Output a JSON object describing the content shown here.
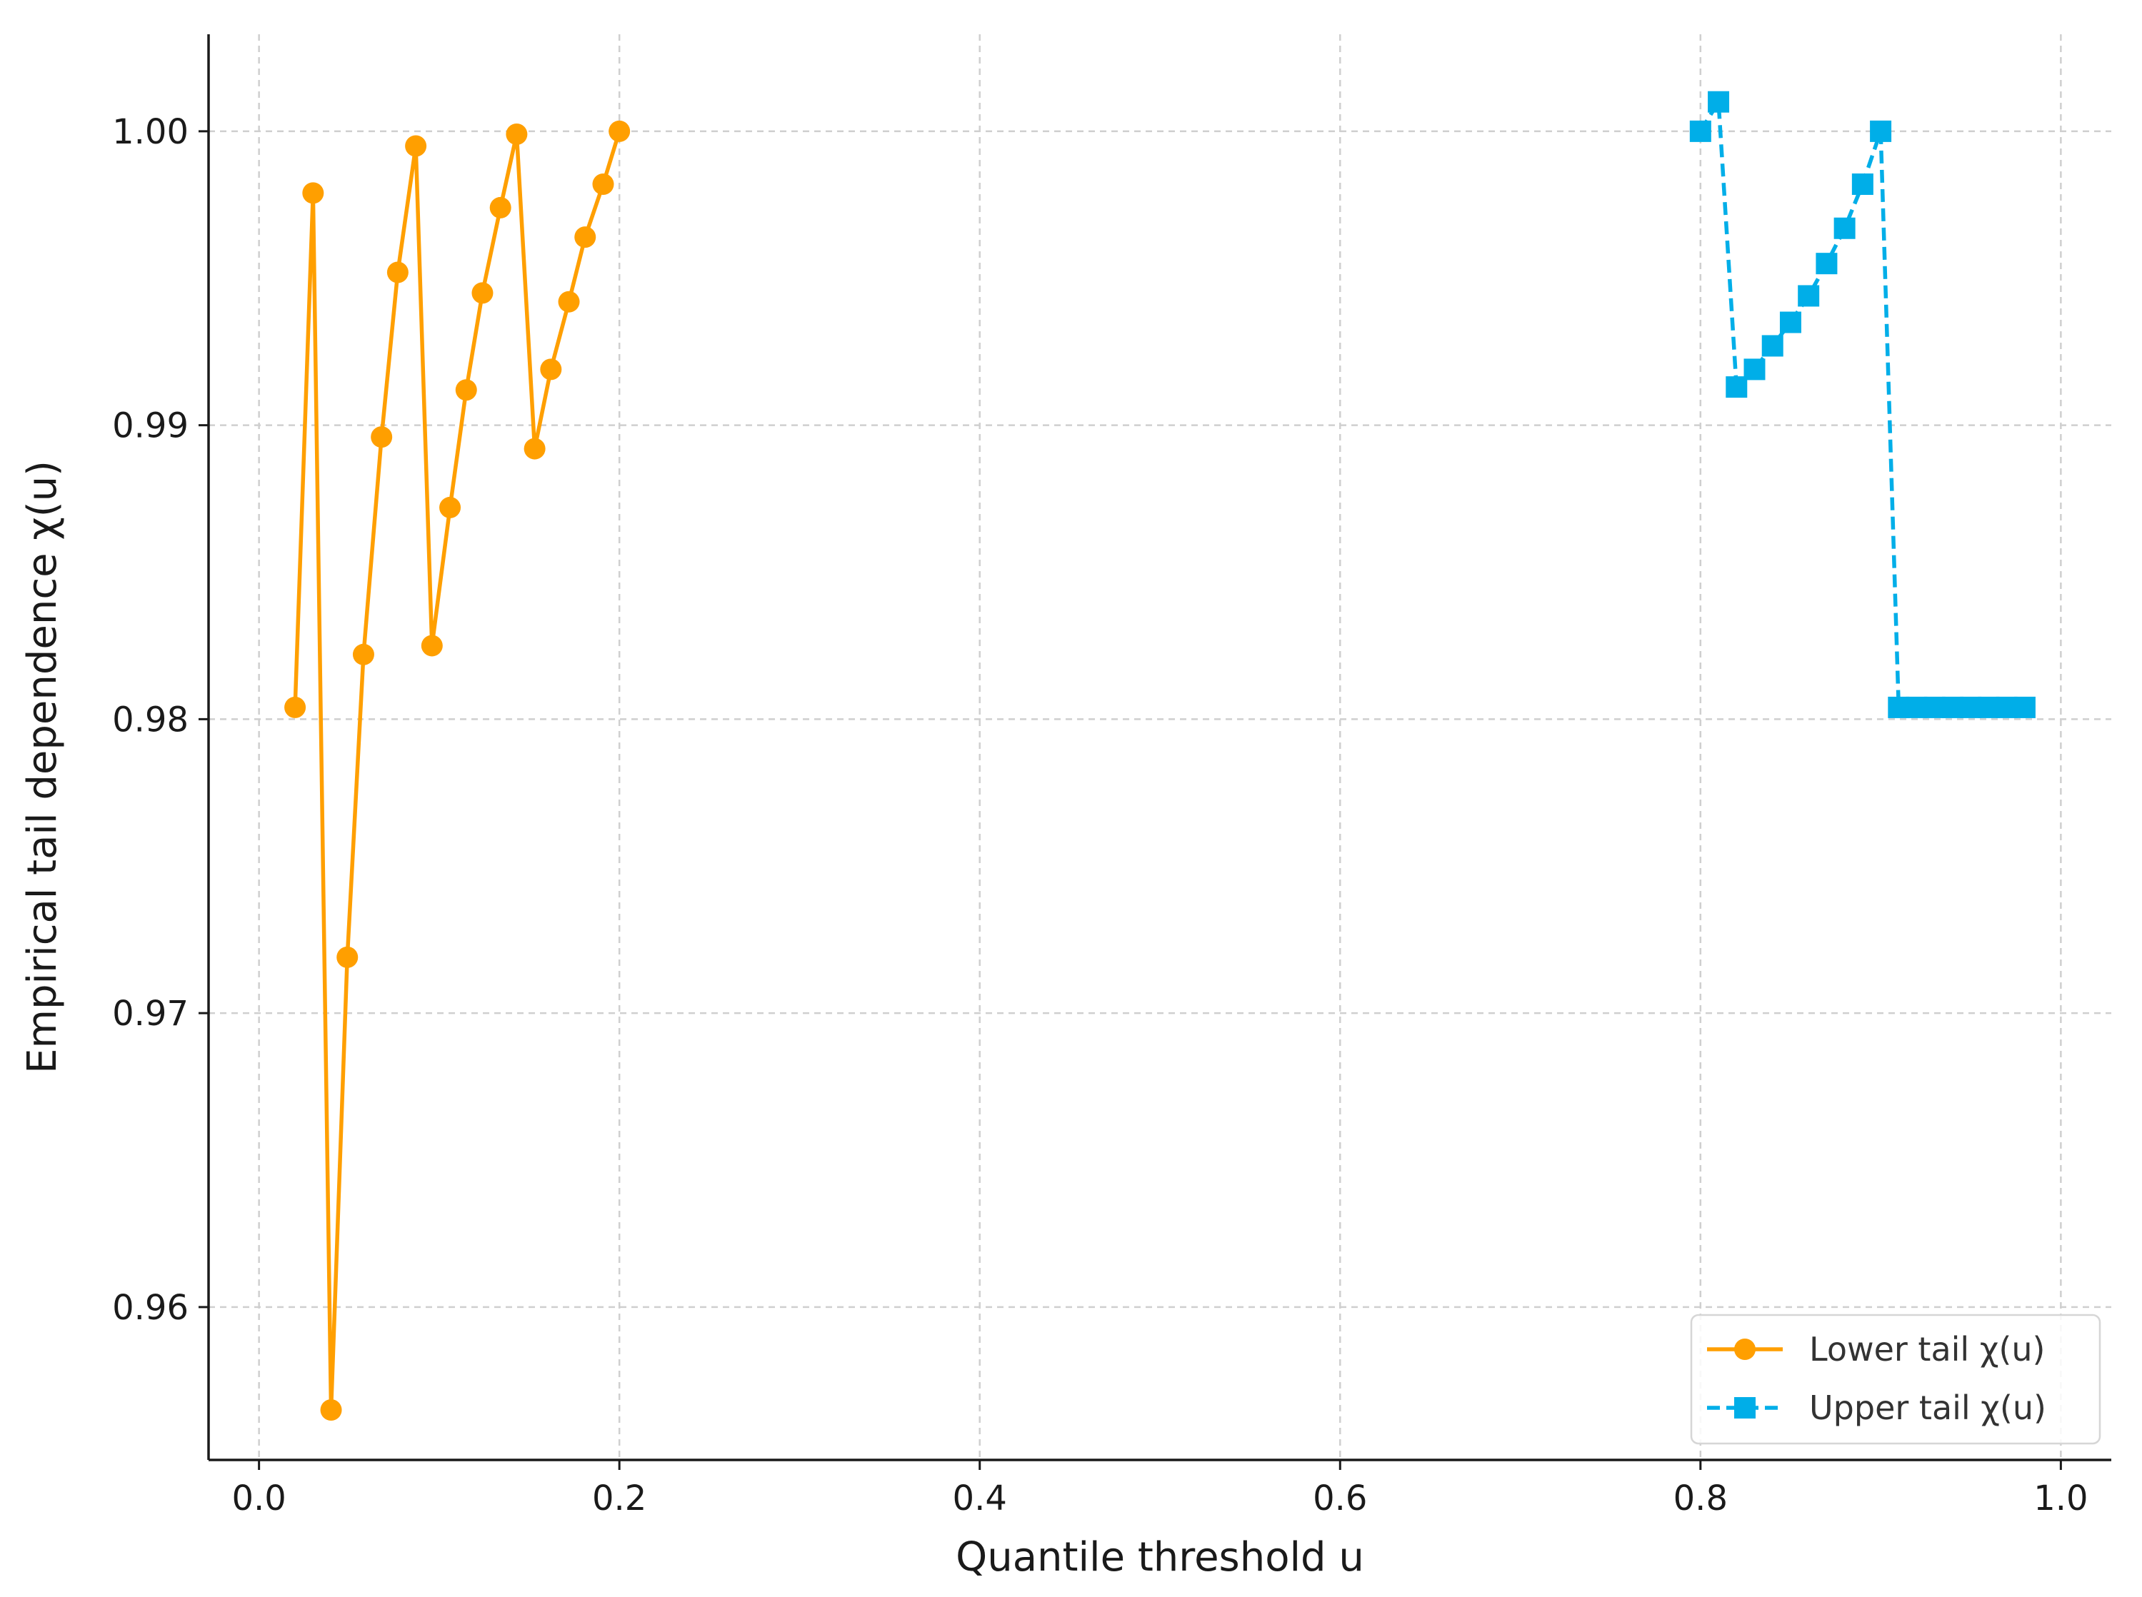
{
  "chart_data": {
    "type": "line",
    "title": "",
    "xlabel": "Quantile threshold u",
    "ylabel": "Empirical tail dependence χ(u)",
    "xlim": [
      -0.028,
      1.028
    ],
    "ylim": [
      0.9548,
      1.0033
    ],
    "x_ticks": [
      0.0,
      0.2,
      0.4,
      0.6,
      0.8,
      1.0
    ],
    "x_tick_labels": [
      "0.0",
      "0.2",
      "0.4",
      "0.6",
      "0.8",
      "1.0"
    ],
    "y_ticks": [
      0.96,
      0.97,
      0.98,
      0.99,
      1.0
    ],
    "y_tick_labels": [
      "0.96",
      "0.97",
      "0.98",
      "0.99",
      "1.00"
    ],
    "grid": true,
    "legend_position": "lower-right",
    "series": [
      {
        "name": "Lower tail χ(u)",
        "color": "#ff9f00",
        "marker": "circle",
        "line_style": "solid",
        "x": [
          0.02,
          0.03,
          0.04,
          0.049,
          0.058,
          0.068,
          0.077,
          0.087,
          0.096,
          0.106,
          0.115,
          0.124,
          0.134,
          0.143,
          0.153,
          0.162,
          0.172,
          0.181,
          0.191,
          0.2
        ],
        "y": [
          0.9804,
          0.9979,
          0.9565,
          0.9719,
          0.9822,
          0.9896,
          0.9952,
          0.9995,
          0.9825,
          0.9872,
          0.9912,
          0.9945,
          0.9974,
          0.9999,
          0.9892,
          0.9919,
          0.9942,
          0.9964,
          0.9982,
          1.0
        ]
      },
      {
        "name": "Upper tail χ(u)",
        "color": "#00aee8",
        "marker": "square",
        "line_style": "dashed",
        "x": [
          0.8,
          0.81,
          0.82,
          0.83,
          0.84,
          0.85,
          0.86,
          0.87,
          0.88,
          0.89,
          0.9,
          0.91,
          0.92,
          0.93,
          0.94,
          0.95,
          0.96,
          0.97,
          0.98
        ],
        "y": [
          1.0,
          1.001,
          0.9913,
          0.9919,
          0.9927,
          0.9935,
          0.9944,
          0.9955,
          0.9967,
          0.9982,
          1.0,
          0.9804,
          0.9804,
          0.9804,
          0.9804,
          0.9804,
          0.9804,
          0.9804,
          0.9804
        ]
      }
    ]
  }
}
